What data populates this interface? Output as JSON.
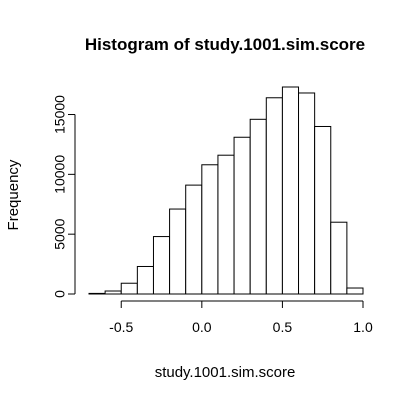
{
  "chart_data": {
    "type": "bar",
    "title": "Histogram of study.1001.sim.score",
    "xlabel": "study.1001.sim.score",
    "ylabel": "Frequency",
    "bins": [
      {
        "start": -0.7,
        "end": -0.6,
        "count": 50
      },
      {
        "start": -0.6,
        "end": -0.5,
        "count": 250
      },
      {
        "start": -0.5,
        "end": -0.4,
        "count": 900
      },
      {
        "start": -0.4,
        "end": -0.3,
        "count": 2300
      },
      {
        "start": -0.3,
        "end": -0.2,
        "count": 4800
      },
      {
        "start": -0.2,
        "end": -0.1,
        "count": 7100
      },
      {
        "start": -0.1,
        "end": 0.0,
        "count": 9100
      },
      {
        "start": 0.0,
        "end": 0.1,
        "count": 10800
      },
      {
        "start": 0.1,
        "end": 0.2,
        "count": 11600
      },
      {
        "start": 0.2,
        "end": 0.3,
        "count": 13100
      },
      {
        "start": 0.3,
        "end": 0.4,
        "count": 14600
      },
      {
        "start": 0.4,
        "end": 0.5,
        "count": 16400
      },
      {
        "start": 0.5,
        "end": 0.6,
        "count": 17300
      },
      {
        "start": 0.6,
        "end": 0.7,
        "count": 16800
      },
      {
        "start": 0.7,
        "end": 0.8,
        "count": 14000
      },
      {
        "start": 0.8,
        "end": 0.9,
        "count": 6000
      },
      {
        "start": 0.9,
        "end": 1.0,
        "count": 500
      }
    ],
    "xlim": [
      -0.7,
      1.0
    ],
    "ylim": [
      0,
      17300
    ],
    "x_ticks": [
      -0.5,
      0.0,
      0.5,
      1.0
    ],
    "x_tick_labels": [
      "-0.5",
      "0.0",
      "0.5",
      "1.0"
    ],
    "y_ticks": [
      0,
      5000,
      10000,
      15000
    ],
    "y_tick_labels": [
      "0",
      "5000",
      "10000",
      "15000"
    ],
    "grid": false,
    "legend": "none",
    "colors": {
      "bar_fill": "#ffffff",
      "bar_stroke": "#000000"
    }
  }
}
